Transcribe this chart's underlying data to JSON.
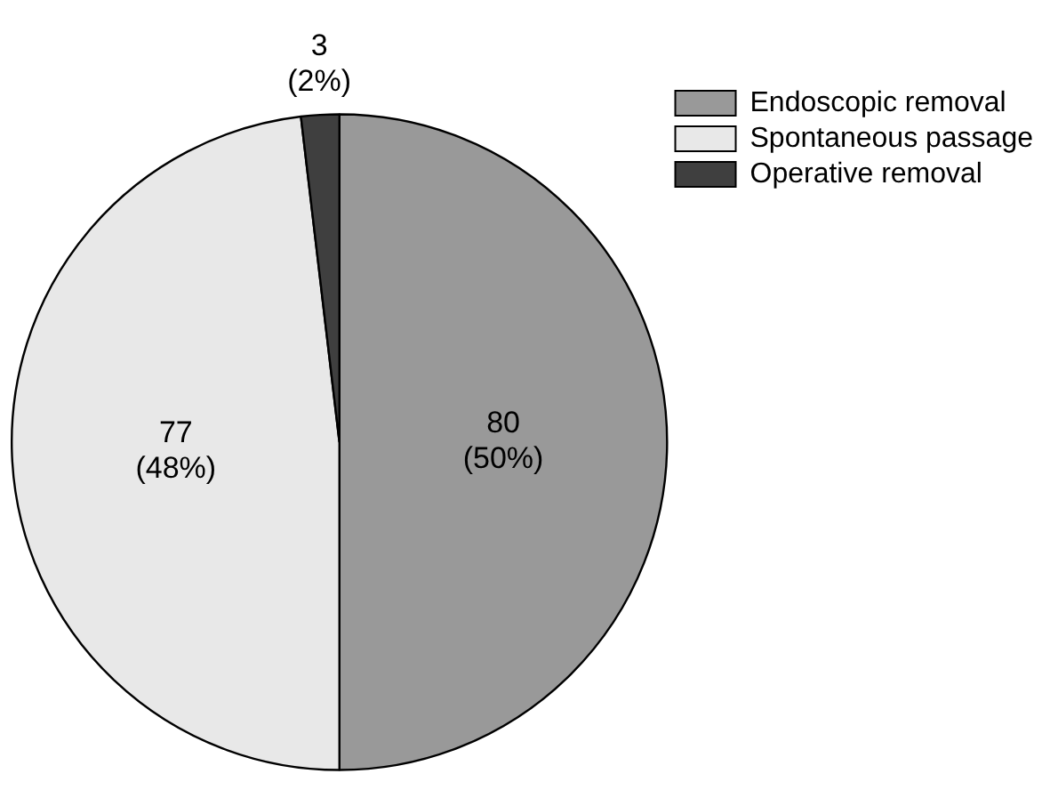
{
  "chart_data": {
    "type": "pie",
    "categories": [
      "Endoscopic removal",
      "Spontaneous passage",
      "Operative removal"
    ],
    "values": [
      80,
      77,
      3
    ],
    "colors": [
      "#999999",
      "#e8e8e8",
      "#3f3f3f"
    ],
    "value_labels": [
      "80 (50%)",
      "77 (48%)",
      "3 (2%)"
    ],
    "legend": "top right"
  }
}
